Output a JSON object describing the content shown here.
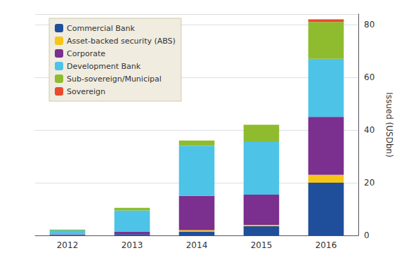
{
  "chart_data": {
    "type": "bar",
    "stacked": true,
    "categories": [
      "2012",
      "2013",
      "2014",
      "2015",
      "2016"
    ],
    "series": [
      {
        "name": "Commercial Bank",
        "color": "#1f4e9a",
        "values": [
          0.2,
          0.5,
          1.5,
          3.5,
          20.0
        ]
      },
      {
        "name": "Asset-backed security (ABS)",
        "color": "#f5c518",
        "values": [
          0.0,
          0.0,
          0.5,
          0.5,
          3.0
        ]
      },
      {
        "name": "Corporate",
        "color": "#7b2f8e",
        "values": [
          0.2,
          1.0,
          13.0,
          11.5,
          22.0
        ]
      },
      {
        "name": "Development Bank",
        "color": "#4dc3e8",
        "values": [
          1.5,
          8.0,
          19.0,
          20.0,
          22.0
        ]
      },
      {
        "name": "Sub-sovereign/Municipal",
        "color": "#8fbc2e",
        "values": [
          0.3,
          1.0,
          2.0,
          6.5,
          14.0
        ]
      },
      {
        "name": "Sovereign",
        "color": "#e84b2e",
        "values": [
          0.0,
          0.0,
          0.0,
          0.0,
          1.0
        ]
      }
    ],
    "ylim": [
      0,
      84
    ],
    "yticks": [
      0,
      20,
      40,
      60,
      80
    ],
    "ylabel": "Issued (USDbn)",
    "grid": true,
    "legend": "upper left"
  }
}
